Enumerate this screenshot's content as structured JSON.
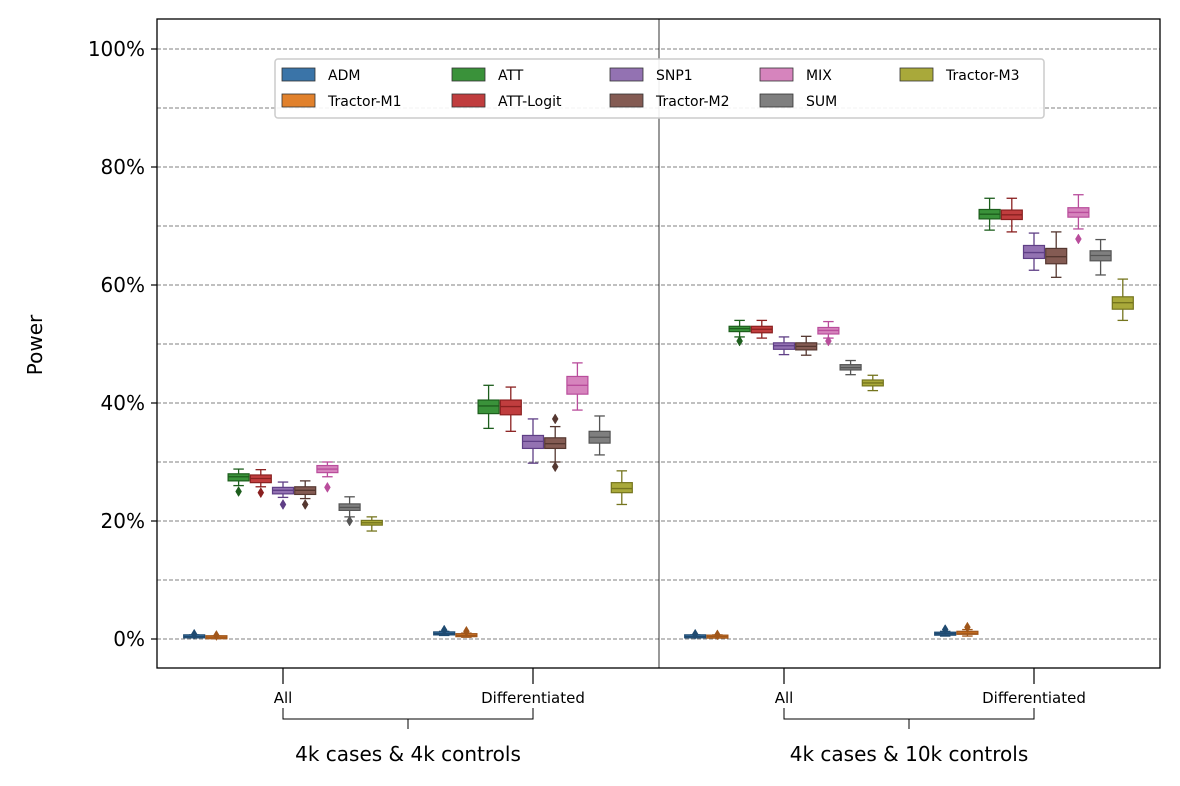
{
  "chart_data": {
    "type": "box",
    "ylabel": "Power",
    "ylim": [
      -0.05,
      1.05
    ],
    "y_ticks": [
      0.0,
      0.2,
      0.4,
      0.6,
      0.8,
      1.0
    ],
    "y_tick_labels": [
      "0%",
      "20%",
      "40%",
      "60%",
      "80%",
      "100%"
    ],
    "grid": "horizontal dashed every 10%",
    "legend": "top, 5 columns",
    "panels": [
      {
        "label": "4k cases & 4k controls",
        "categories": [
          "All",
          "Differentiated"
        ]
      },
      {
        "label": "4k cases & 10k controls",
        "categories": [
          "All",
          "Differentiated"
        ]
      }
    ],
    "series": [
      {
        "name": "ADM",
        "color": "#3a74a8",
        "dark": "#1f4a70",
        "boxes": [
          [
            0.002,
            0.003,
            0.004,
            0.006,
            0.007
          ],
          [
            0.006,
            0.008,
            0.009,
            0.011,
            0.013
          ],
          [
            0.002,
            0.003,
            0.004,
            0.006,
            0.007
          ],
          [
            0.005,
            0.007,
            0.009,
            0.011,
            0.013
          ]
        ]
      },
      {
        "name": "Tractor-M1",
        "color": "#e1812c",
        "dark": "#a0561a",
        "boxes": [
          [
            0.001,
            0.002,
            0.003,
            0.004,
            0.005
          ],
          [
            0.003,
            0.005,
            0.006,
            0.008,
            0.01
          ],
          [
            0.002,
            0.003,
            0.004,
            0.005,
            0.007
          ],
          [
            0.005,
            0.008,
            0.01,
            0.013,
            0.016
          ]
        ]
      },
      {
        "name": "ATT",
        "color": "#3a923a",
        "dark": "#1d5e1d",
        "boxes": [
          [
            0.26,
            0.268,
            0.275,
            0.28,
            0.288
          ],
          [
            0.357,
            0.382,
            0.395,
            0.405,
            0.43
          ],
          [
            0.512,
            0.521,
            0.526,
            0.53,
            0.54
          ],
          [
            0.693,
            0.712,
            0.72,
            0.728,
            0.747
          ]
        ]
      },
      {
        "name": "ATT-Logit",
        "color": "#c03d3e",
        "dark": "#8a2020",
        "boxes": [
          [
            0.258,
            0.265,
            0.272,
            0.278,
            0.287
          ],
          [
            0.352,
            0.38,
            0.394,
            0.405,
            0.427
          ],
          [
            0.51,
            0.519,
            0.525,
            0.53,
            0.54
          ],
          [
            0.69,
            0.711,
            0.719,
            0.727,
            0.747
          ]
        ]
      },
      {
        "name": "SNP1",
        "color": "#9372b2",
        "dark": "#5f3f86",
        "boxes": [
          [
            0.24,
            0.246,
            0.252,
            0.257,
            0.266
          ],
          [
            0.298,
            0.323,
            0.335,
            0.345,
            0.373
          ],
          [
            0.482,
            0.491,
            0.497,
            0.502,
            0.512
          ],
          [
            0.625,
            0.645,
            0.655,
            0.667,
            0.688
          ]
        ]
      },
      {
        "name": "Tractor-M2",
        "color": "#845b53",
        "dark": "#553730",
        "boxes": [
          [
            0.238,
            0.245,
            0.252,
            0.258,
            0.268
          ],
          [
            0.3,
            0.323,
            0.331,
            0.341,
            0.36
          ],
          [
            0.481,
            0.49,
            0.496,
            0.502,
            0.513
          ],
          [
            0.613,
            0.636,
            0.648,
            0.662,
            0.69
          ]
        ]
      },
      {
        "name": "MIX",
        "color": "#d684bd",
        "dark": "#b94d9c",
        "boxes": [
          [
            0.275,
            0.282,
            0.288,
            0.294,
            0.3
          ],
          [
            0.388,
            0.415,
            0.43,
            0.445,
            0.468
          ],
          [
            0.51,
            0.517,
            0.523,
            0.528,
            0.538
          ],
          [
            0.695,
            0.715,
            0.723,
            0.731,
            0.753
          ]
        ]
      },
      {
        "name": "SUM",
        "color": "#7f7f7f",
        "dark": "#555555",
        "boxes": [
          [
            0.207,
            0.218,
            0.223,
            0.229,
            0.241
          ],
          [
            0.312,
            0.332,
            0.342,
            0.352,
            0.378
          ],
          [
            0.448,
            0.456,
            0.46,
            0.465,
            0.472
          ],
          [
            0.617,
            0.641,
            0.65,
            0.658,
            0.677
          ]
        ]
      },
      {
        "name": "Tractor-M3",
        "color": "#a9a93a",
        "dark": "#75751e",
        "boxes": [
          [
            0.183,
            0.193,
            0.197,
            0.201,
            0.207
          ],
          [
            0.228,
            0.248,
            0.255,
            0.265,
            0.285
          ],
          [
            0.421,
            0.429,
            0.434,
            0.439,
            0.447
          ],
          [
            0.54,
            0.559,
            0.57,
            0.58,
            0.61
          ]
        ]
      }
    ]
  }
}
